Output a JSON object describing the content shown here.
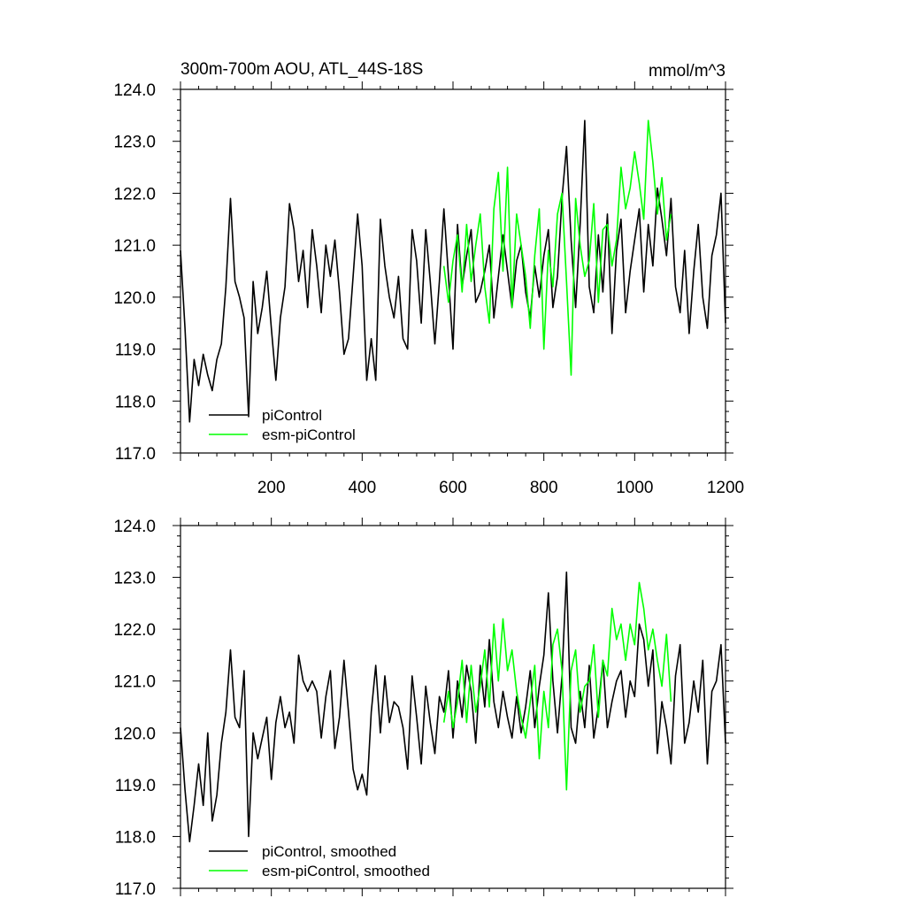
{
  "chart_data": [
    {
      "type": "line",
      "title": "300m-700m AOU, ATL_44S-18S",
      "units_label": "mmol/m^3",
      "xlim": [
        0,
        1200
      ],
      "ylim": [
        117,
        124
      ],
      "x_ticks": [
        "200",
        "400",
        "600",
        "800",
        "1000",
        "1200"
      ],
      "y_ticks": [
        "117.0",
        "118.0",
        "119.0",
        "120.0",
        "121.0",
        "122.0",
        "123.0",
        "124.0"
      ],
      "legend_position": "bottom-left",
      "series": [
        {
          "name": "piControl",
          "color": "#000000",
          "x": [
            0,
            10,
            20,
            30,
            40,
            50,
            60,
            70,
            80,
            90,
            100,
            110,
            120,
            130,
            140,
            150,
            160,
            170,
            180,
            190,
            200,
            210,
            220,
            230,
            240,
            250,
            260,
            270,
            280,
            290,
            300,
            310,
            320,
            330,
            340,
            350,
            360,
            370,
            380,
            390,
            400,
            410,
            420,
            430,
            440,
            450,
            460,
            470,
            480,
            490,
            500,
            510,
            520,
            530,
            540,
            550,
            560,
            570,
            580,
            590,
            600,
            610,
            620,
            630,
            640,
            650,
            660,
            670,
            680,
            690,
            700,
            710,
            720,
            730,
            740,
            750,
            760,
            770,
            780,
            790,
            800,
            810,
            820,
            830,
            840,
            850,
            860,
            870,
            880,
            890,
            900,
            910,
            920,
            930,
            940,
            950,
            960,
            970,
            980,
            990,
            1000,
            1010,
            1020,
            1030,
            1040,
            1050,
            1060,
            1070,
            1080,
            1090,
            1100,
            1110,
            1120,
            1130,
            1140,
            1150,
            1160,
            1170,
            1180,
            1190,
            1200
          ],
          "values": [
            120.9,
            119.4,
            117.6,
            118.8,
            118.3,
            118.9,
            118.5,
            118.2,
            118.8,
            119.1,
            120.2,
            121.9,
            120.3,
            120.0,
            119.6,
            117.7,
            120.3,
            119.3,
            119.8,
            120.5,
            119.4,
            118.4,
            119.6,
            120.2,
            121.8,
            121.3,
            120.3,
            120.9,
            119.8,
            121.3,
            120.6,
            119.7,
            121.0,
            120.4,
            121.1,
            120.1,
            118.9,
            119.2,
            120.4,
            121.6,
            120.6,
            118.4,
            119.2,
            118.4,
            121.5,
            120.6,
            120.0,
            119.6,
            120.4,
            119.2,
            119.0,
            121.3,
            120.7,
            119.5,
            121.3,
            120.3,
            119.1,
            120.3,
            121.7,
            120.4,
            119.0,
            121.4,
            120.2,
            120.8,
            121.3,
            119.9,
            120.1,
            120.5,
            121.0,
            119.6,
            120.4,
            121.2,
            120.5,
            119.8,
            120.7,
            121.0,
            120.1,
            119.6,
            120.6,
            120.0,
            120.8,
            121.3,
            119.8,
            120.4,
            121.9,
            122.9,
            121.1,
            119.8,
            121.4,
            123.4,
            120.2,
            119.7,
            121.2,
            120.1,
            121.6,
            119.3,
            120.9,
            121.5,
            119.7,
            120.5,
            121.1,
            121.7,
            120.1,
            121.4,
            120.6,
            122.1,
            121.5,
            120.8,
            121.9,
            120.2,
            119.7,
            120.9,
            119.3,
            120.5,
            121.4,
            120.0,
            119.4,
            120.8,
            121.2,
            122.0,
            119.5
          ]
        },
        {
          "name": "esm-piControl",
          "color": "#00ff00",
          "x": [
            580,
            590,
            600,
            610,
            620,
            630,
            640,
            650,
            660,
            670,
            680,
            690,
            700,
            710,
            720,
            730,
            740,
            750,
            760,
            770,
            780,
            790,
            800,
            810,
            820,
            830,
            840,
            850,
            860,
            870,
            880,
            890,
            900,
            910,
            920,
            930,
            940,
            950,
            960,
            970,
            980,
            990,
            1000,
            1010,
            1020,
            1030,
            1040,
            1050,
            1060,
            1070,
            1080
          ],
          "values": [
            120.6,
            119.9,
            120.7,
            121.2,
            120.1,
            121.4,
            120.3,
            121.0,
            121.6,
            120.2,
            119.5,
            121.7,
            122.4,
            120.5,
            122.5,
            119.8,
            121.6,
            121.0,
            120.4,
            119.4,
            120.8,
            121.7,
            119.0,
            120.9,
            120.2,
            121.6,
            122.0,
            120.3,
            118.5,
            121.9,
            121.0,
            120.4,
            120.7,
            121.8,
            119.9,
            121.3,
            121.4,
            120.6,
            121.1,
            122.5,
            121.7,
            122.1,
            122.8,
            122.2,
            121.5,
            123.4,
            122.6,
            121.6,
            122.3,
            121.1,
            121.6
          ]
        }
      ]
    },
    {
      "type": "line",
      "xlim": [
        0,
        1200
      ],
      "ylim": [
        117,
        124
      ],
      "y_ticks": [
        "117.0",
        "118.0",
        "119.0",
        "120.0",
        "121.0",
        "122.0",
        "123.0",
        "124.0"
      ],
      "legend_position": "bottom-left",
      "series": [
        {
          "name": "piControl, smoothed",
          "color": "#000000",
          "x": [
            0,
            10,
            20,
            30,
            40,
            50,
            60,
            70,
            80,
            90,
            100,
            110,
            120,
            130,
            140,
            150,
            160,
            170,
            180,
            190,
            200,
            210,
            220,
            230,
            240,
            250,
            260,
            270,
            280,
            290,
            300,
            310,
            320,
            330,
            340,
            350,
            360,
            370,
            380,
            390,
            400,
            410,
            420,
            430,
            440,
            450,
            460,
            470,
            480,
            490,
            500,
            510,
            520,
            530,
            540,
            550,
            560,
            570,
            580,
            590,
            600,
            610,
            620,
            630,
            640,
            650,
            660,
            670,
            680,
            690,
            700,
            710,
            720,
            730,
            740,
            750,
            760,
            770,
            780,
            790,
            800,
            810,
            820,
            830,
            840,
            850,
            860,
            870,
            880,
            890,
            900,
            910,
            920,
            930,
            940,
            950,
            960,
            970,
            980,
            990,
            1000,
            1010,
            1020,
            1030,
            1040,
            1050,
            1060,
            1070,
            1080,
            1090,
            1100,
            1110,
            1120,
            1130,
            1140,
            1150,
            1160,
            1170,
            1180,
            1190,
            1200
          ],
          "values": [
            120.1,
            118.9,
            117.9,
            118.6,
            119.4,
            118.6,
            120.0,
            118.3,
            118.8,
            119.8,
            120.4,
            121.6,
            120.3,
            120.1,
            121.2,
            118.0,
            120.0,
            119.5,
            119.9,
            120.3,
            119.1,
            120.2,
            120.7,
            120.1,
            120.4,
            119.8,
            121.5,
            121.0,
            120.8,
            121.0,
            120.8,
            119.9,
            120.7,
            121.2,
            119.7,
            120.3,
            121.4,
            120.4,
            119.3,
            118.9,
            119.2,
            118.8,
            120.4,
            121.3,
            120.0,
            121.1,
            120.2,
            120.6,
            120.5,
            120.1,
            119.3,
            121.1,
            120.3,
            119.4,
            120.9,
            120.2,
            119.6,
            120.7,
            120.4,
            121.2,
            119.9,
            121.0,
            120.3,
            121.3,
            120.8,
            119.8,
            121.3,
            120.5,
            121.8,
            120.6,
            120.1,
            120.8,
            120.3,
            119.9,
            120.7,
            120.0,
            120.5,
            121.2,
            120.1,
            120.9,
            121.5,
            122.7,
            121.0,
            120.0,
            121.1,
            123.1,
            120.1,
            119.8,
            120.8,
            120.1,
            121.3,
            119.9,
            120.5,
            121.4,
            120.1,
            120.6,
            121.0,
            121.2,
            120.3,
            121.0,
            120.7,
            122.1,
            121.8,
            120.9,
            121.6,
            119.6,
            120.6,
            120.1,
            119.4,
            121.1,
            121.7,
            119.8,
            120.2,
            121.0,
            120.4,
            121.4,
            119.4,
            120.8,
            121.0,
            121.7,
            119.8
          ]
        },
        {
          "name": "esm-piControl, smoothed",
          "color": "#00ff00",
          "x": [
            580,
            590,
            600,
            610,
            620,
            630,
            640,
            650,
            660,
            670,
            680,
            690,
            700,
            710,
            720,
            730,
            740,
            750,
            760,
            770,
            780,
            790,
            800,
            810,
            820,
            830,
            840,
            850,
            860,
            870,
            880,
            890,
            900,
            910,
            920,
            930,
            940,
            950,
            960,
            970,
            980,
            990,
            1000,
            1010,
            1020,
            1030,
            1040,
            1050,
            1060,
            1070,
            1080
          ],
          "values": [
            120.2,
            120.8,
            120.1,
            120.6,
            121.4,
            120.2,
            121.3,
            120.4,
            120.9,
            121.6,
            120.5,
            122.1,
            121.0,
            122.2,
            121.2,
            121.6,
            120.8,
            120.3,
            119.9,
            120.6,
            121.3,
            119.5,
            120.8,
            120.1,
            121.7,
            122.0,
            121.2,
            118.9,
            121.2,
            121.6,
            120.4,
            120.9,
            121.0,
            121.7,
            120.3,
            121.4,
            121.1,
            122.4,
            121.8,
            122.1,
            121.4,
            122.1,
            121.7,
            122.9,
            122.4,
            121.6,
            122.0,
            121.4,
            120.9,
            121.9,
            120.6
          ]
        }
      ]
    }
  ]
}
